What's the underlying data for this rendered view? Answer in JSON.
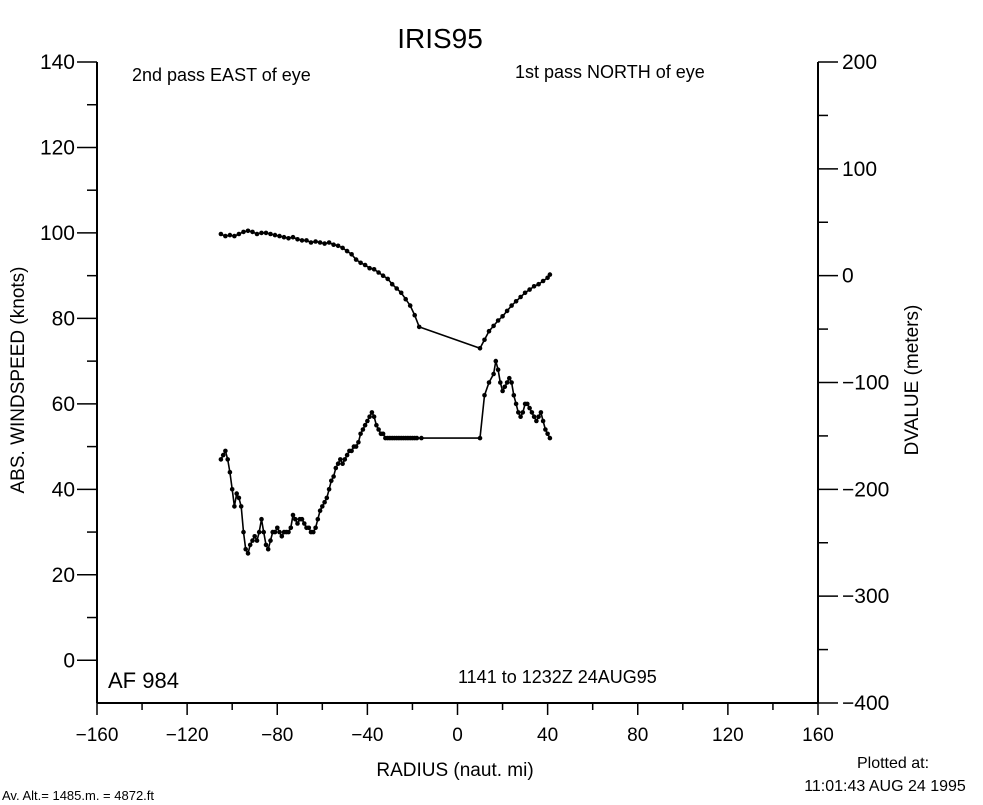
{
  "header": {
    "title": "IRIS95"
  },
  "annotations": {
    "left_pass": "2nd pass EAST of eye",
    "right_pass": "1st pass NORTH of eye",
    "aircraft": "AF 984",
    "time_range": "1141 to 1232Z 24AUG95",
    "plotted_label": "Plotted at:",
    "plotted_time": "11:01:43 AUG 24 1995",
    "altitude": "Av. Alt.= 1485.m. =  4872.ft"
  },
  "chart_data": {
    "type": "line",
    "title": "IRIS95",
    "xlabel": "RADIUS (naut. mi)",
    "ylabel": "ABS. WINDSPEED (knots)",
    "y2label": "DVALUE (meters)",
    "xlim": [
      -160,
      160
    ],
    "ylim": [
      -10,
      140
    ],
    "y2lim": [
      -400,
      200
    ],
    "x_ticks": [
      "−160",
      "−120",
      "−80",
      "−40",
      "0",
      "40",
      "80",
      "120",
      "160"
    ],
    "y_ticks": [
      "0",
      "20",
      "40",
      "60",
      "80",
      "100",
      "120",
      "140"
    ],
    "y2_ticks": [
      "−400",
      "−300",
      "−200",
      "−100",
      "0",
      "100",
      "200"
    ],
    "grid": false,
    "series": [
      {
        "axis": "right",
        "values_x": [
          -105,
          -103,
          -101,
          -99,
          -97,
          -95,
          -93,
          -91,
          -89,
          -87,
          -85,
          -83,
          -81,
          -79,
          -77,
          -75,
          -73,
          -71,
          -69,
          -67,
          -65,
          -63,
          -61,
          -59,
          -57,
          -55,
          -53,
          -51,
          -49,
          -47,
          -45,
          -43,
          -41,
          -39,
          -37,
          -35,
          -33,
          -31,
          -29,
          -27,
          -25,
          -23,
          -21,
          -19,
          -17,
          10,
          12,
          14,
          16,
          18,
          20,
          22,
          24,
          26,
          28,
          30,
          32,
          34,
          36,
          38,
          40,
          41
        ],
        "values_y": [
          39,
          37,
          38,
          37,
          39,
          41,
          42,
          41,
          39,
          40,
          40,
          39,
          38,
          37,
          36,
          35,
          36,
          34,
          33,
          33,
          31,
          32,
          31,
          30,
          31,
          29,
          28,
          26,
          23,
          20,
          15,
          12,
          10,
          7,
          6,
          3,
          0,
          -3,
          -8,
          -12,
          -16,
          -22,
          -28,
          -37,
          -48,
          -68,
          -60,
          -52,
          -47,
          -42,
          -38,
          -33,
          -28,
          -24,
          -20,
          -16,
          -13,
          -10,
          -8,
          -5,
          -2,
          1
        ]
      },
      {
        "axis": "left",
        "values_x": [
          -105,
          -104,
          -103,
          -102,
          -101,
          -100,
          -99,
          -98,
          -97,
          -96,
          -95,
          -94,
          -93,
          -92,
          -91,
          -90,
          -89,
          -88,
          -87,
          -86,
          -85,
          -84,
          -83,
          -82,
          -81,
          -80,
          -79,
          -78,
          -77,
          -76,
          -75,
          -74,
          -73,
          -72,
          -71,
          -70,
          -69,
          -68,
          -67,
          -66,
          -65,
          -64,
          -63,
          -62,
          -61,
          -60,
          -59,
          -58,
          -57,
          -56,
          -55,
          -54,
          -53,
          -52,
          -51,
          -50,
          -49,
          -48,
          -47,
          -46,
          -45,
          -44,
          -43,
          -42,
          -41,
          -40,
          -39,
          -38,
          -37,
          -36,
          -35,
          -34,
          -33,
          -32,
          -31,
          -30,
          -29,
          -28,
          -27,
          -26,
          -25,
          -24,
          -23,
          -22,
          -21,
          -20,
          -19,
          -18,
          -16,
          10,
          12,
          14,
          16,
          17,
          18,
          19,
          20,
          21,
          22,
          23,
          24,
          25,
          26,
          27,
          28,
          29,
          30,
          31,
          32,
          33,
          34,
          35,
          36,
          37,
          38,
          39,
          40,
          41
        ],
        "values_y": [
          47,
          48,
          49,
          47,
          44,
          40,
          36,
          39,
          38,
          36,
          30,
          26,
          25,
          27,
          28,
          29,
          28,
          30,
          33,
          30,
          27,
          26,
          28,
          30,
          30,
          31,
          30,
          29,
          30,
          30,
          30,
          31,
          34,
          33,
          32,
          33,
          33,
          32,
          31,
          31,
          30,
          30,
          31,
          33,
          35,
          36,
          37,
          38,
          40,
          42,
          43,
          45,
          46,
          47,
          46,
          47,
          48,
          49,
          49,
          50,
          50,
          51,
          53,
          54,
          55,
          56,
          57,
          58,
          57,
          55,
          54,
          53,
          53,
          52,
          52,
          52,
          52,
          52,
          52,
          52,
          52,
          52,
          52,
          52,
          52,
          52,
          52,
          52,
          52,
          52,
          62,
          65,
          67,
          70,
          68,
          65,
          63,
          64,
          65,
          66,
          65,
          62,
          60,
          58,
          57,
          58,
          60,
          60,
          59,
          58,
          57,
          56,
          57,
          58,
          56,
          54,
          53,
          52
        ]
      }
    ]
  }
}
